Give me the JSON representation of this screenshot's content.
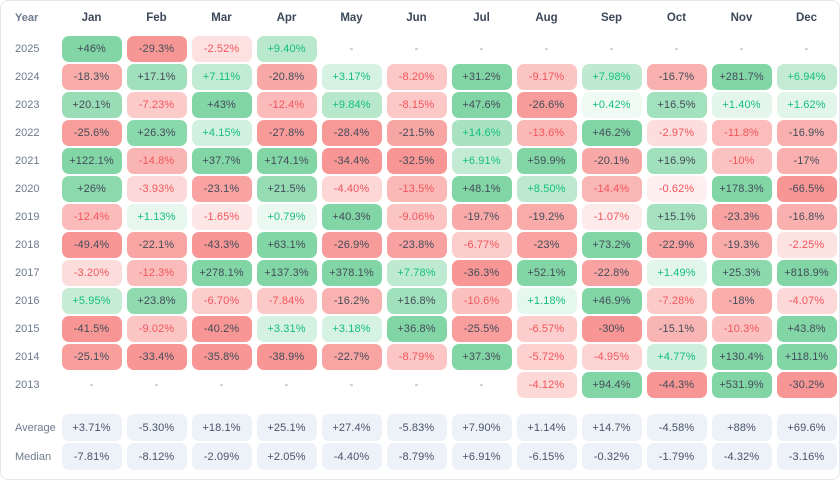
{
  "chart_data": {
    "type": "heatmap",
    "corner_label": "Year",
    "columns": [
      "Jan",
      "Feb",
      "Mar",
      "Apr",
      "May",
      "Jun",
      "Jul",
      "Aug",
      "Sep",
      "Oct",
      "Nov",
      "Dec"
    ],
    "rows": [
      {
        "label": "2025",
        "values": [
          "+46%",
          "-29.3%",
          "-2.52%",
          "+9.40%",
          "-",
          "-",
          "-",
          "-",
          "-",
          "-",
          "-",
          "-"
        ]
      },
      {
        "label": "2024",
        "values": [
          "-18.3%",
          "+17.1%",
          "+7.11%",
          "-20.8%",
          "+3.17%",
          "-8.20%",
          "+31.2%",
          "-9.17%",
          "+7.98%",
          "-16.7%",
          "+281.7%",
          "+6.94%"
        ]
      },
      {
        "label": "2023",
        "values": [
          "+20.1%",
          "-7.23%",
          "+43%",
          "-12.4%",
          "+9.84%",
          "-8.15%",
          "+47.6%",
          "-26.6%",
          "+0.42%",
          "+16.5%",
          "+1.40%",
          "+1.62%"
        ]
      },
      {
        "label": "2022",
        "values": [
          "-25.6%",
          "+26.3%",
          "+4.15%",
          "-27.8%",
          "-28.4%",
          "-21.5%",
          "+14.6%",
          "-13.6%",
          "+46.2%",
          "-2.97%",
          "-11.8%",
          "-16.9%"
        ]
      },
      {
        "label": "2021",
        "values": [
          "+122.1%",
          "-14.8%",
          "+37.7%",
          "+174.1%",
          "-34.4%",
          "-32.5%",
          "+6.91%",
          "+59.9%",
          "-20.1%",
          "+16.9%",
          "-10%",
          "-17%"
        ]
      },
      {
        "label": "2020",
        "values": [
          "+26%",
          "-3.93%",
          "-23.1%",
          "+21.5%",
          "-4.40%",
          "-13.5%",
          "+48.1%",
          "+8.50%",
          "-14.4%",
          "-0.62%",
          "+178.3%",
          "-66.5%"
        ]
      },
      {
        "label": "2019",
        "values": [
          "-12.4%",
          "+1.13%",
          "-1.65%",
          "+0.79%",
          "+40.3%",
          "-9.06%",
          "-19.7%",
          "-19.2%",
          "-1.07%",
          "+15.1%",
          "-23.3%",
          "-16.8%"
        ]
      },
      {
        "label": "2018",
        "values": [
          "-49.4%",
          "-22.1%",
          "-43.3%",
          "+63.1%",
          "-26.9%",
          "-23.8%",
          "-6.77%",
          "-23%",
          "+73.2%",
          "-22.9%",
          "-19.3%",
          "-2.25%"
        ]
      },
      {
        "label": "2017",
        "values": [
          "-3.20%",
          "-12.3%",
          "+278.1%",
          "+137.3%",
          "+378.1%",
          "+7.78%",
          "-36.3%",
          "+52.1%",
          "-22.8%",
          "+1.49%",
          "+25.3%",
          "+818.9%"
        ]
      },
      {
        "label": "2016",
        "values": [
          "+5.95%",
          "+23.8%",
          "-6.70%",
          "-7.84%",
          "-16.2%",
          "+16.8%",
          "-10.6%",
          "+1.18%",
          "+46.9%",
          "-7.28%",
          "-18%",
          "-4.07%"
        ]
      },
      {
        "label": "2015",
        "values": [
          "-41.5%",
          "-9.02%",
          "-40.2%",
          "+3.31%",
          "+3.18%",
          "+36.8%",
          "-25.5%",
          "-6.57%",
          "-30%",
          "-15.1%",
          "-10.3%",
          "+43.8%"
        ]
      },
      {
        "label": "2014",
        "values": [
          "-25.1%",
          "-33.4%",
          "-35.8%",
          "-38.9%",
          "-22.7%",
          "-8.79%",
          "+37.3%",
          "-5.72%",
          "-4.95%",
          "+4.77%",
          "+130.4%",
          "+118.1%"
        ]
      },
      {
        "label": "2013",
        "values": [
          "-",
          "-",
          "-",
          "-",
          "-",
          "-",
          "-",
          "-4.12%",
          "+94.4%",
          "-44.3%",
          "+531.9%",
          "-30.2%"
        ]
      }
    ],
    "summary_rows": [
      {
        "label": "Average",
        "values": [
          "+3.71%",
          "-5.30%",
          "+18.1%",
          "+25.1%",
          "+27.4%",
          "-5.83%",
          "+7.90%",
          "+1.14%",
          "+14.7%",
          "-4.58%",
          "+88%",
          "+69.6%"
        ]
      },
      {
        "label": "Median",
        "values": [
          "-7.81%",
          "-8.12%",
          "-2.09%",
          "+2.05%",
          "-4.40%",
          "-8.79%",
          "+6.91%",
          "-6.15%",
          "-0.32%",
          "-1.79%",
          "-4.32%",
          "-3.16%"
        ]
      }
    ],
    "empty_placeholder": "-",
    "color_scale": {
      "positive_full": "#82d6a6",
      "negative_full": "#f79694",
      "positive_text": "#14bf7d",
      "negative_text": "#f2555c",
      "dark_text": "#434c59",
      "summary_bg": "#edf1f8",
      "summary_text": "#48556b",
      "empty_text": "#8b95a5",
      "saturation_cap_pct": 30,
      "dark_text_threshold_pct": 15
    }
  }
}
